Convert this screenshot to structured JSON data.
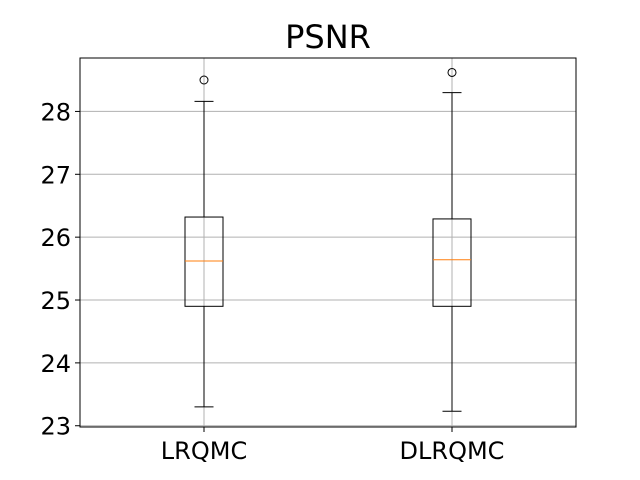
{
  "chart_data": {
    "type": "box",
    "title": "PSNR",
    "xlabel": "",
    "ylabel": "",
    "categories": [
      "LRQMC",
      "DLRQMC"
    ],
    "ylim": [
      22.98,
      28.85
    ],
    "yticks": [
      23,
      24,
      25,
      26,
      27,
      28
    ],
    "grid": true,
    "boxes": [
      {
        "label": "LRQMC",
        "whisker_low": 23.3,
        "q1": 24.9,
        "median": 25.62,
        "q3": 26.32,
        "whisker_high": 28.16,
        "outliers": [
          28.5
        ]
      },
      {
        "label": "DLRQMC",
        "whisker_low": 23.23,
        "q1": 24.9,
        "median": 25.64,
        "q3": 26.29,
        "whisker_high": 28.3,
        "outliers": [
          28.62
        ]
      }
    ],
    "colors": {
      "box": "#000000",
      "median": "#ff7f0e",
      "grid": "#b0b0b0"
    }
  }
}
